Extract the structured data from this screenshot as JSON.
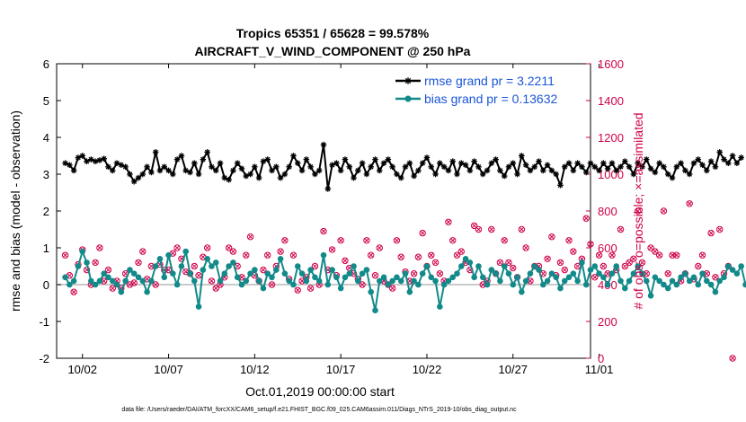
{
  "colors": {
    "rmse": "#000000",
    "bias": "#138a8a",
    "obs": "#d0004a",
    "zero": "#b9b9b9",
    "legend_text": "#1a55d6"
  },
  "chart_data": {
    "type": "line",
    "title_line1": "Tropics 65351 / 65628 = 99.578%",
    "title_line2": "AIRCRAFT_V_WIND_COMPONENT @ 250 hPa",
    "xlabel": "Oct.01,2019 00:00:00 start",
    "ylabel_left": "rmse and bias (model - observation)",
    "ylabel_right": "# of obs: o=possible; ×=assimilated",
    "xlim": [
      0.5,
      31.5
    ],
    "ylim_left": [
      -2,
      6
    ],
    "ylim_right": [
      0,
      1600
    ],
    "x_ticks": [
      {
        "value": 2,
        "label": "10/02"
      },
      {
        "value": 7,
        "label": "10/07"
      },
      {
        "value": 12,
        "label": "10/12"
      },
      {
        "value": 17,
        "label": "10/17"
      },
      {
        "value": 22,
        "label": "10/22"
      },
      {
        "value": 27,
        "label": "10/27"
      },
      {
        "value": 32,
        "label": "11/01"
      }
    ],
    "y_ticks_left": [
      -2,
      -1,
      0,
      1,
      2,
      3,
      4,
      5,
      6
    ],
    "y_ticks_right": [
      0,
      200,
      400,
      600,
      800,
      1000,
      1200,
      1400,
      1600
    ],
    "legend": {
      "location": "top-right",
      "entries": [
        {
          "key": "rmse",
          "label": "rmse grand pr = 3.2211"
        },
        {
          "key": "bias",
          "label": "bias grand pr = 0.13632"
        }
      ]
    },
    "footer": "data file: /Users/raeder/DAI/ATM_forcXX/CAM6_setup/f.e21.FHIST_BGC.f09_025.CAM6assim.011/Diags_NTrS_2019-10/obs_diag_output.nc",
    "x_start": 1.0,
    "x_step": 0.25,
    "series": [
      {
        "name": "rmse",
        "values": [
          3.3,
          3.25,
          3.1,
          3.45,
          3.5,
          3.35,
          3.4,
          3.35,
          3.38,
          3.42,
          3.2,
          3.1,
          3.3,
          3.25,
          3.2,
          3.0,
          2.8,
          2.9,
          3.0,
          3.2,
          3.05,
          3.6,
          3.1,
          3.2,
          3.1,
          3.0,
          3.4,
          3.5,
          3.1,
          3.05,
          3.3,
          3.0,
          3.4,
          3.6,
          3.2,
          3.1,
          3.3,
          2.9,
          2.85,
          3.1,
          3.3,
          3.15,
          2.95,
          3.0,
          3.2,
          2.9,
          3.35,
          3.4,
          3.1,
          3.2,
          2.9,
          3.0,
          3.2,
          3.5,
          3.3,
          3.1,
          3.4,
          3.2,
          3.0,
          3.1,
          3.8,
          2.6,
          3.25,
          3.3,
          3.1,
          3.4,
          3.2,
          2.9,
          3.1,
          3.3,
          3.0,
          3.2,
          3.4,
          3.1,
          3.3,
          3.4,
          3.2,
          3.0,
          2.9,
          3.2,
          3.3,
          2.95,
          3.1,
          3.3,
          3.45,
          3.2,
          3.0,
          3.3,
          3.2,
          3.1,
          3.35,
          3.0,
          3.3,
          3.25,
          3.1,
          3.35,
          3.2,
          3.0,
          3.1,
          3.3,
          3.4,
          3.1,
          2.95,
          3.2,
          3.3,
          3.0,
          3.5,
          3.25,
          3.1,
          3.2,
          3.35,
          3.1,
          3.25,
          3.1,
          3.0,
          2.7,
          3.2,
          3.3,
          3.1,
          3.3,
          3.2,
          3.05,
          3.3,
          3.2,
          3.1,
          3.3,
          3.15,
          3.3,
          3.1,
          3.2,
          3.35,
          3.2,
          3.0,
          3.3,
          3.2,
          3.4,
          3.15,
          3.05,
          3.3,
          3.2,
          3.0,
          2.9,
          3.2,
          3.3,
          3.1,
          3.0,
          3.3,
          3.4,
          3.25,
          3.1,
          3.35,
          3.2,
          3.6,
          3.4,
          3.3,
          3.5,
          3.3,
          3.45
        ]
      },
      {
        "name": "bias",
        "values": [
          0.2,
          0.0,
          0.1,
          0.5,
          0.9,
          0.6,
          0.1,
          0.0,
          0.1,
          0.3,
          0.2,
          0.1,
          0.0,
          -0.2,
          0.1,
          0.4,
          0.3,
          0.2,
          0.1,
          -0.2,
          0.1,
          0.5,
          0.7,
          0.2,
          0.8,
          0.3,
          0.0,
          0.5,
          0.9,
          0.3,
          0.1,
          -0.6,
          0.4,
          0.7,
          0.5,
          0.6,
          0.1,
          0.3,
          0.5,
          0.6,
          0.2,
          0.0,
          0.1,
          0.3,
          0.4,
          0.1,
          -0.1,
          0.3,
          0.2,
          0.4,
          0.7,
          0.3,
          0.1,
          0.0,
          0.5,
          0.3,
          0.1,
          0.4,
          0.2,
          0.1,
          0.8,
          0.0,
          0.4,
          0.2,
          -0.1,
          0.2,
          0.3,
          0.5,
          0.1,
          0.3,
          0.4,
          -0.2,
          -0.7,
          0.1,
          0.2,
          0.0,
          0.1,
          0.2,
          0.1,
          0.3,
          -0.2,
          0.1,
          0.0,
          0.3,
          0.5,
          0.2,
          0.1,
          -0.6,
          0.0,
          0.1,
          0.2,
          0.3,
          0.5,
          0.7,
          0.6,
          0.2,
          0.5,
          0.2,
          0.0,
          0.4,
          0.3,
          0.1,
          0.5,
          0.3,
          0.0,
          0.2,
          -0.2,
          0.1,
          0.3,
          0.5,
          0.4,
          0.0,
          0.1,
          0.3,
          0.2,
          -0.1,
          0.1,
          0.2,
          0.3,
          0.1,
          0.6,
          0.0,
          0.4,
          0.5,
          0.3,
          0.2,
          0.0,
          0.3,
          0.5,
          0.1,
          -0.1,
          0.1,
          0.3,
          0.5,
          0.3,
          0.1,
          -0.3,
          0.2,
          0.1,
          0.0,
          -0.1,
          0.1,
          0.0,
          0.2,
          0.3,
          0.1,
          0.2,
          0.0,
          0.3,
          0.1,
          0.0,
          -0.2,
          0.1,
          0.2,
          0.5,
          0.4,
          0.3,
          0.5,
          0.0,
          0.1
        ]
      },
      {
        "name": "obs_count",
        "values": [
          560,
          450,
          360,
          510,
          590,
          480,
          400,
          520,
          600,
          420,
          480,
          380,
          420,
          380,
          460,
          400,
          410,
          520,
          580,
          430,
          500,
          400,
          510,
          480,
          480,
          570,
          600,
          540,
          470,
          460,
          500,
          450,
          550,
          600,
          420,
          380,
          400,
          440,
          600,
          580,
          500,
          440,
          560,
          660,
          450,
          420,
          480,
          560,
          400,
          500,
          580,
          640,
          430,
          560,
          370,
          420,
          440,
          380,
          500,
          400,
          690,
          480,
          590,
          450,
          640,
          530,
          490,
          460,
          430,
          400,
          640,
          560,
          450,
          600,
          420,
          400,
          380,
          640,
          550,
          470,
          420,
          460,
          550,
          680,
          500,
          560,
          520,
          460,
          420,
          740,
          640,
          560,
          580,
          520,
          480,
          720,
          700,
          400,
          420,
          700,
          460,
          520,
          640,
          520,
          490,
          440,
          700,
          600,
          420,
          500,
          500,
          460,
          540,
          660,
          450,
          520,
          480,
          640,
          580,
          500,
          540,
          760,
          620,
          440,
          560,
          500,
          460,
          560,
          480,
          700,
          500,
          520,
          540,
          800,
          520,
          460,
          600,
          580,
          560,
          800,
          460,
          560,
          560,
          420,
          460,
          840,
          430,
          500,
          560,
          460,
          680,
          440,
          700,
          460,
          500,
          0
        ]
      }
    ]
  }
}
